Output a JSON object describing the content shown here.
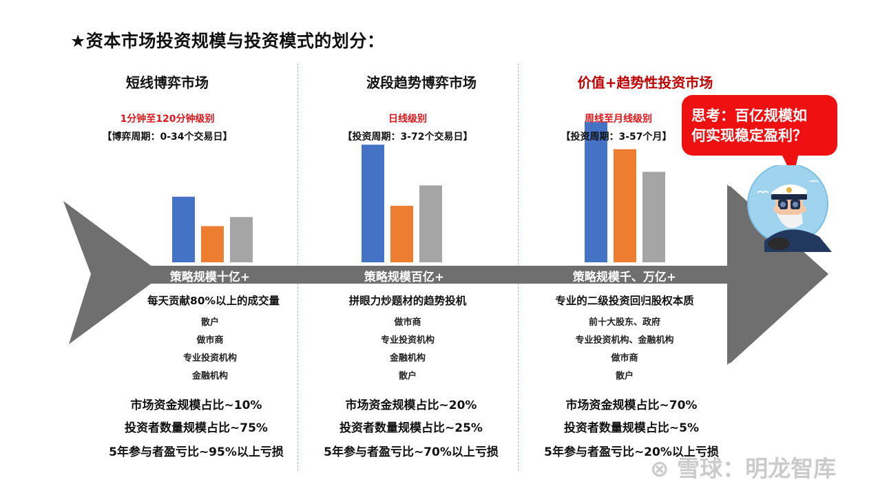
{
  "title": "★资本市场投资规模与投资模式的划分：",
  "columns": [
    {
      "heading": "短线博弈市场",
      "frequency": "1分钟至120分钟级别",
      "cycle": "【博弈周期：0-34个交易日】",
      "spine_label": "策略规模十亿+",
      "description": "每天贡献80%以上的成交量",
      "participants": [
        "散户",
        "做市商",
        "专业投资机构",
        "金融机构"
      ],
      "stats": [
        "市场资金规模占比~10%",
        "投资者数量规模占比~75%",
        "5年参与者盈亏比~95%以上亏损"
      ]
    },
    {
      "heading": "波段趋势博弈市场",
      "frequency": "日线级别",
      "cycle": "【投资周期：3-72个交易日】",
      "spine_label": "策略规模百亿+",
      "description": "拼眼力炒题材的趋势投机",
      "participants": [
        "做市商",
        "专业投资机构",
        "金融机构",
        "散户"
      ],
      "stats": [
        "市场资金规模占比~20%",
        "投资者数量规模占比~25%",
        "5年参与者盈亏比~70%以上亏损"
      ]
    },
    {
      "heading": "价值+趋势性投资市场",
      "frequency": "周线至月线级别",
      "cycle": "【投资周期：3-57个月】",
      "spine_label": "策略规模千、万亿+",
      "description": "专业的二级投资回归股权本质",
      "participants": [
        "前十大股东、政府",
        "专业投资机构、金融机构",
        "做市商",
        "散户"
      ],
      "stats": [
        "市场资金规模占比~70%",
        "投资者数量规模占比~5%",
        "5年参与者盈亏比~20%以上亏损"
      ]
    }
  ],
  "bubble": {
    "line1": "思考：百亿规模如",
    "line2": "何实现稳定盈利？"
  },
  "watermark": "雪球：明龙智库",
  "chart_data": {
    "type": "bar",
    "categories": [
      "短线博弈市场",
      "波段趋势博弈市场",
      "价值+趋势性投资市场"
    ],
    "series": [
      {
        "values": [
          2.9,
          5.2,
          6.2
        ],
        "color": "#4472c4"
      },
      {
        "values": [
          1.6,
          2.5,
          5.0
        ],
        "color": "#ed7d31"
      },
      {
        "values": [
          2.0,
          3.4,
          4.0
        ],
        "color": "#a5a5a5"
      }
    ],
    "ylim": [
      0,
      7
    ],
    "grid": false,
    "legend": "none"
  },
  "colors": {
    "fish": "#6f6f6f",
    "accent_red": "#e0161b",
    "heading_dark_red": "#c00000",
    "bubble": "#ef1111"
  }
}
